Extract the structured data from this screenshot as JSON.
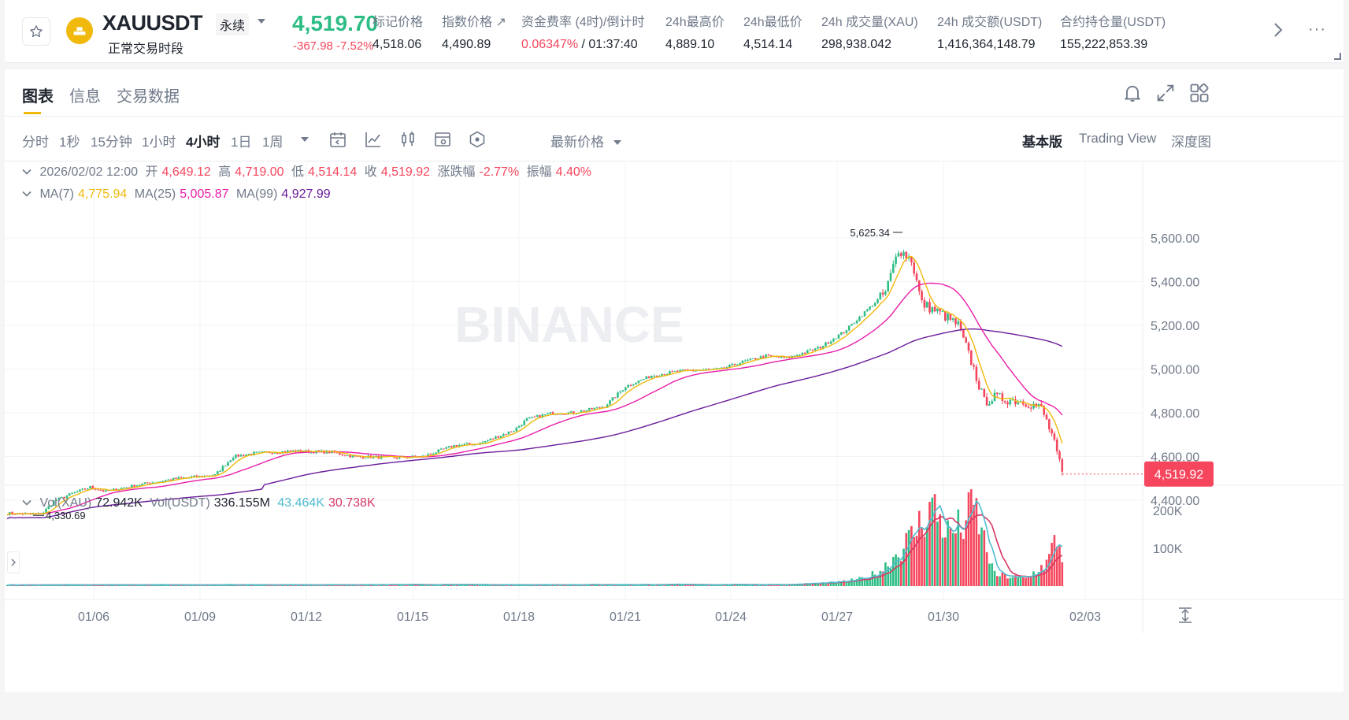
{
  "header": {
    "symbol": "XAUUSDT",
    "contract_type": "永续",
    "session": "正常交易时段",
    "last_price": "4,519.70",
    "change": "-367.98 -7.52%",
    "stats": [
      {
        "label": "标记价格",
        "value": "4,518.06"
      },
      {
        "label": "指数价格 ↗",
        "value": "4,490.89"
      },
      {
        "label": "资金费率 (4时)/倒计时",
        "value_red": "0.06347%",
        "value": " / 01:37:40"
      },
      {
        "label": "24h最高价",
        "value": "4,889.10"
      },
      {
        "label": "24h最低价",
        "value": "4,514.14"
      },
      {
        "label": "24h 成交量(XAU)",
        "value": "298,938.042"
      },
      {
        "label": "24h 成交额(USDT)",
        "value": "1,416,364,148.79"
      },
      {
        "label": "合约持仓量(USDT)",
        "value": "155,222,853.39"
      }
    ]
  },
  "tabs": [
    "图表",
    "信息",
    "交易数据"
  ],
  "intervals": [
    "分时",
    "1秒",
    "15分钟",
    "1小时",
    "4小时",
    "1日",
    "1周"
  ],
  "active_interval": "4小时",
  "price_source": "最新价格",
  "views": [
    "基本版",
    "Trading View",
    "深度图"
  ],
  "legend": {
    "date": "2026/02/02 12:00",
    "open_label": "开",
    "open": "4,649.12",
    "high_label": "高",
    "high": "4,719.00",
    "low_label": "低",
    "low": "4,514.14",
    "close_label": "收",
    "close": "4,519.92",
    "chg_label": "涨跌幅",
    "chg": "-2.77%",
    "amp_label": "振幅",
    "amp": "4.40%",
    "ma7_label": "MA(7)",
    "ma7": "4,775.94",
    "ma25_label": "MA(25)",
    "ma25": "5,005.87",
    "ma99_label": "MA(99)",
    "ma99": "4,927.99",
    "vol_xau_label": "Vol(XAU)",
    "vol_xau": "72.942K",
    "vol_usdt_label": "Vol(USDT)",
    "vol_usdt": "336.155M",
    "vol_ma1": "43.464K",
    "vol_ma2": "30.738K"
  },
  "watermark": "BINANCE",
  "chart_data": {
    "type": "candlestick",
    "interval": "4小时",
    "price_axis_ticks": [
      "5,600.00",
      "5,400.00",
      "5,200.00",
      "5,000.00",
      "4,800.00",
      "4,600.00",
      "4,400.00"
    ],
    "volume_axis_ticks": [
      "200K",
      "100K"
    ],
    "date_ticks": [
      "01/06",
      "01/09",
      "01/12",
      "01/15",
      "01/18",
      "01/21",
      "01/24",
      "01/27",
      "01/30",
      "02/03"
    ],
    "current_price_tag": "4,519.92",
    "max_marker": "5,625.34",
    "min_marker": "4,330.69",
    "close_waypoints": [
      [
        0,
        4340
      ],
      [
        12,
        4335
      ],
      [
        14,
        4345
      ],
      [
        18,
        4395
      ],
      [
        25,
        4430
      ],
      [
        32,
        4460
      ],
      [
        38,
        4440
      ],
      [
        46,
        4460
      ],
      [
        55,
        4480
      ],
      [
        66,
        4500
      ],
      [
        80,
        4515
      ],
      [
        87,
        4600
      ],
      [
        95,
        4615
      ],
      [
        110,
        4625
      ],
      [
        125,
        4620
      ],
      [
        133,
        4600
      ],
      [
        150,
        4595
      ],
      [
        160,
        4600
      ],
      [
        172,
        4650
      ],
      [
        182,
        4660
      ],
      [
        195,
        4720
      ],
      [
        200,
        4770
      ],
      [
        210,
        4800
      ],
      [
        218,
        4800
      ],
      [
        230,
        4830
      ],
      [
        238,
        4920
      ],
      [
        248,
        4970
      ],
      [
        258,
        4990
      ],
      [
        275,
        5000
      ],
      [
        282,
        5030
      ],
      [
        292,
        5060
      ],
      [
        300,
        5050
      ],
      [
        313,
        5100
      ],
      [
        322,
        5170
      ],
      [
        330,
        5260
      ],
      [
        338,
        5350
      ],
      [
        343,
        5550
      ],
      [
        348,
        5500
      ],
      [
        352,
        5300
      ],
      [
        360,
        5250
      ],
      [
        366,
        5200
      ],
      [
        372,
        5000
      ],
      [
        376,
        4850
      ],
      [
        380,
        4870
      ],
      [
        386,
        4860
      ],
      [
        392,
        4850
      ],
      [
        398,
        4820
      ],
      [
        402,
        4700
      ],
      [
        406,
        4520
      ]
    ],
    "volume_waypoints": [
      [
        0,
        3
      ],
      [
        300,
        4
      ],
      [
        320,
        10
      ],
      [
        330,
        20
      ],
      [
        336,
        40
      ],
      [
        343,
        90
      ],
      [
        348,
        130
      ],
      [
        356,
        215
      ],
      [
        362,
        140
      ],
      [
        368,
        160
      ],
      [
        372,
        215
      ],
      [
        376,
        120
      ],
      [
        380,
        30
      ],
      [
        392,
        20
      ],
      [
        400,
        60
      ],
      [
        404,
        130
      ],
      [
        406,
        72.9
      ]
    ],
    "ma7_end": 4775.94,
    "ma25_end": 5005.87,
    "ma99_end": 4927.99
  }
}
